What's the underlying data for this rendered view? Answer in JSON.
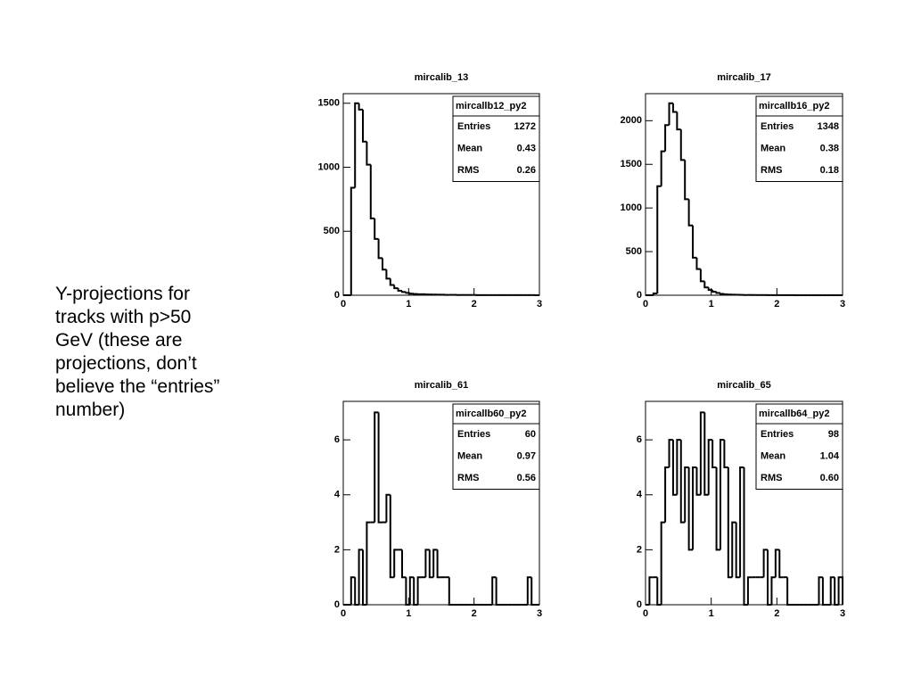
{
  "caption": [
    "Y-projections for",
    "tracks with p>50",
    "GeV (these are",
    "projections, don’t",
    "believe the “entries”",
    "number)"
  ],
  "chart_data": [
    {
      "type": "histogram",
      "title": "mircalib_13",
      "bins": [
        0,
        0.06,
        0.12,
        0.18,
        0.24,
        0.3,
        0.36,
        0.42,
        0.48,
        0.54,
        0.6,
        0.66,
        0.72,
        0.78,
        0.84,
        0.9,
        0.96,
        1.02,
        1.08,
        1.14,
        1.2,
        1.26,
        1.32,
        1.38,
        1.44,
        1.5,
        1.56,
        1.62,
        1.68,
        1.74,
        1.8,
        1.86,
        1.92,
        1.98,
        2.04,
        2.1,
        2.16,
        2.22,
        2.28,
        2.34,
        2.4,
        2.46,
        2.52,
        2.58,
        2.64,
        2.7,
        2.76,
        2.82,
        2.88,
        2.94,
        3
      ],
      "values": [
        0,
        0,
        840,
        1500,
        1450,
        1200,
        1020,
        600,
        440,
        290,
        200,
        130,
        80,
        55,
        35,
        25,
        18,
        12,
        10,
        8,
        8,
        6,
        5,
        5,
        4,
        4,
        3,
        3,
        3,
        2,
        2,
        2,
        2,
        2,
        1,
        1,
        1,
        1,
        1,
        1,
        1,
        1,
        1,
        1,
        1,
        1,
        1,
        1,
        1,
        0
      ],
      "color": "#000000",
      "xlim": [
        0,
        3
      ],
      "xticks": [
        0,
        1,
        2,
        3
      ],
      "ylim": [
        0,
        1575
      ],
      "yticks": [
        0,
        500,
        1000,
        1500
      ],
      "stats": {
        "title": "mircallb12_py2",
        "rows": [
          [
            "Entries",
            "1272"
          ],
          [
            "Mean",
            "0.43"
          ],
          [
            "RMS",
            "0.26"
          ]
        ]
      }
    },
    {
      "type": "histogram",
      "title": "mircalib_17",
      "bins": [
        0,
        0.06,
        0.12,
        0.18,
        0.24,
        0.3,
        0.36,
        0.42,
        0.48,
        0.54,
        0.6,
        0.66,
        0.72,
        0.78,
        0.84,
        0.9,
        0.96,
        1.02,
        1.08,
        1.14,
        1.2,
        1.26,
        1.32,
        1.38,
        1.44,
        1.5,
        1.56,
        1.62,
        1.68,
        1.74,
        1.8,
        1.86,
        1.92,
        1.98,
        2.04,
        2.1,
        2.16,
        2.22,
        2.28,
        2.34,
        2.4,
        2.46,
        2.52,
        2.58,
        2.64,
        2.7,
        2.76,
        2.82,
        2.88,
        2.94,
        3
      ],
      "values": [
        0,
        0,
        20,
        1250,
        1650,
        1950,
        2200,
        2100,
        1900,
        1550,
        1100,
        800,
        430,
        300,
        160,
        90,
        60,
        40,
        25,
        15,
        10,
        8,
        6,
        5,
        4,
        3,
        3,
        2,
        2,
        2,
        2,
        1,
        1,
        1,
        1,
        1,
        1,
        1,
        0,
        0,
        0,
        0,
        0,
        0,
        0,
        0,
        0,
        0,
        0,
        0
      ],
      "color": "#000000",
      "xlim": [
        0,
        3
      ],
      "xticks": [
        0,
        1,
        2,
        3
      ],
      "ylim": [
        0,
        2310
      ],
      "yticks": [
        0,
        500,
        1000,
        1500,
        2000
      ],
      "stats": {
        "title": "mircallb16_py2",
        "rows": [
          [
            "Entries",
            "1348"
          ],
          [
            "Mean",
            "0.38"
          ],
          [
            "RMS",
            "0.18"
          ]
        ]
      }
    },
    {
      "type": "histogram",
      "title": "mircalib_61",
      "bins": [
        0,
        0.06,
        0.12,
        0.18,
        0.24,
        0.3,
        0.36,
        0.42,
        0.48,
        0.54,
        0.6,
        0.66,
        0.72,
        0.78,
        0.84,
        0.9,
        0.96,
        1.02,
        1.08,
        1.14,
        1.2,
        1.26,
        1.32,
        1.38,
        1.44,
        1.5,
        1.56,
        1.62,
        1.68,
        1.74,
        1.8,
        1.86,
        1.92,
        1.98,
        2.04,
        2.1,
        2.16,
        2.22,
        2.28,
        2.34,
        2.4,
        2.46,
        2.52,
        2.58,
        2.64,
        2.7,
        2.76,
        2.82,
        2.88,
        2.94,
        3
      ],
      "values": [
        0,
        0,
        1,
        0,
        2,
        0,
        3,
        3,
        7,
        3,
        3,
        4,
        1,
        2,
        2,
        1,
        0,
        1,
        0,
        1,
        1,
        2,
        1,
        2,
        1,
        1,
        1,
        0,
        0,
        0,
        0,
        0,
        0,
        0,
        0,
        0,
        0,
        0,
        1,
        0,
        0,
        0,
        0,
        0,
        0,
        0,
        0,
        1,
        0,
        0
      ],
      "color": "#000000",
      "xlim": [
        0,
        3
      ],
      "xticks": [
        0,
        1,
        2,
        3
      ],
      "ylim": [
        0,
        7.4
      ],
      "yticks": [
        0,
        2,
        4,
        6
      ],
      "stats": {
        "title": "mircallb60_py2",
        "rows": [
          [
            "Entries",
            "60"
          ],
          [
            "Mean",
            "0.97"
          ],
          [
            "RMS",
            "0.56"
          ]
        ]
      }
    },
    {
      "type": "histogram",
      "title": "mircalib_65",
      "bins": [
        0,
        0.06,
        0.12,
        0.18,
        0.24,
        0.3,
        0.36,
        0.42,
        0.48,
        0.54,
        0.6,
        0.66,
        0.72,
        0.78,
        0.84,
        0.9,
        0.96,
        1.02,
        1.08,
        1.14,
        1.2,
        1.26,
        1.32,
        1.38,
        1.44,
        1.5,
        1.56,
        1.62,
        1.68,
        1.74,
        1.8,
        1.86,
        1.92,
        1.98,
        2.04,
        2.1,
        2.16,
        2.22,
        2.28,
        2.34,
        2.4,
        2.46,
        2.52,
        2.58,
        2.64,
        2.7,
        2.76,
        2.82,
        2.88,
        2.94,
        3
      ],
      "values": [
        0,
        1,
        1,
        0,
        3,
        5,
        6,
        4,
        6,
        3,
        5,
        2,
        5,
        4,
        7,
        4,
        6,
        5,
        2,
        6,
        5,
        1,
        3,
        1,
        5,
        0,
        1,
        1,
        1,
        1,
        2,
        0,
        1,
        2,
        1,
        1,
        0,
        0,
        0,
        0,
        0,
        0,
        0,
        0,
        1,
        0,
        0,
        1,
        0,
        1
      ],
      "color": "#000000",
      "xlim": [
        0,
        3
      ],
      "xticks": [
        0,
        1,
        2,
        3
      ],
      "ylim": [
        0,
        7.4
      ],
      "yticks": [
        0,
        2,
        4,
        6
      ],
      "stats": {
        "title": "mircallb64_py2",
        "rows": [
          [
            "Entries",
            "98"
          ],
          [
            "Mean",
            "1.04"
          ],
          [
            "RMS",
            "0.60"
          ]
        ]
      }
    }
  ]
}
